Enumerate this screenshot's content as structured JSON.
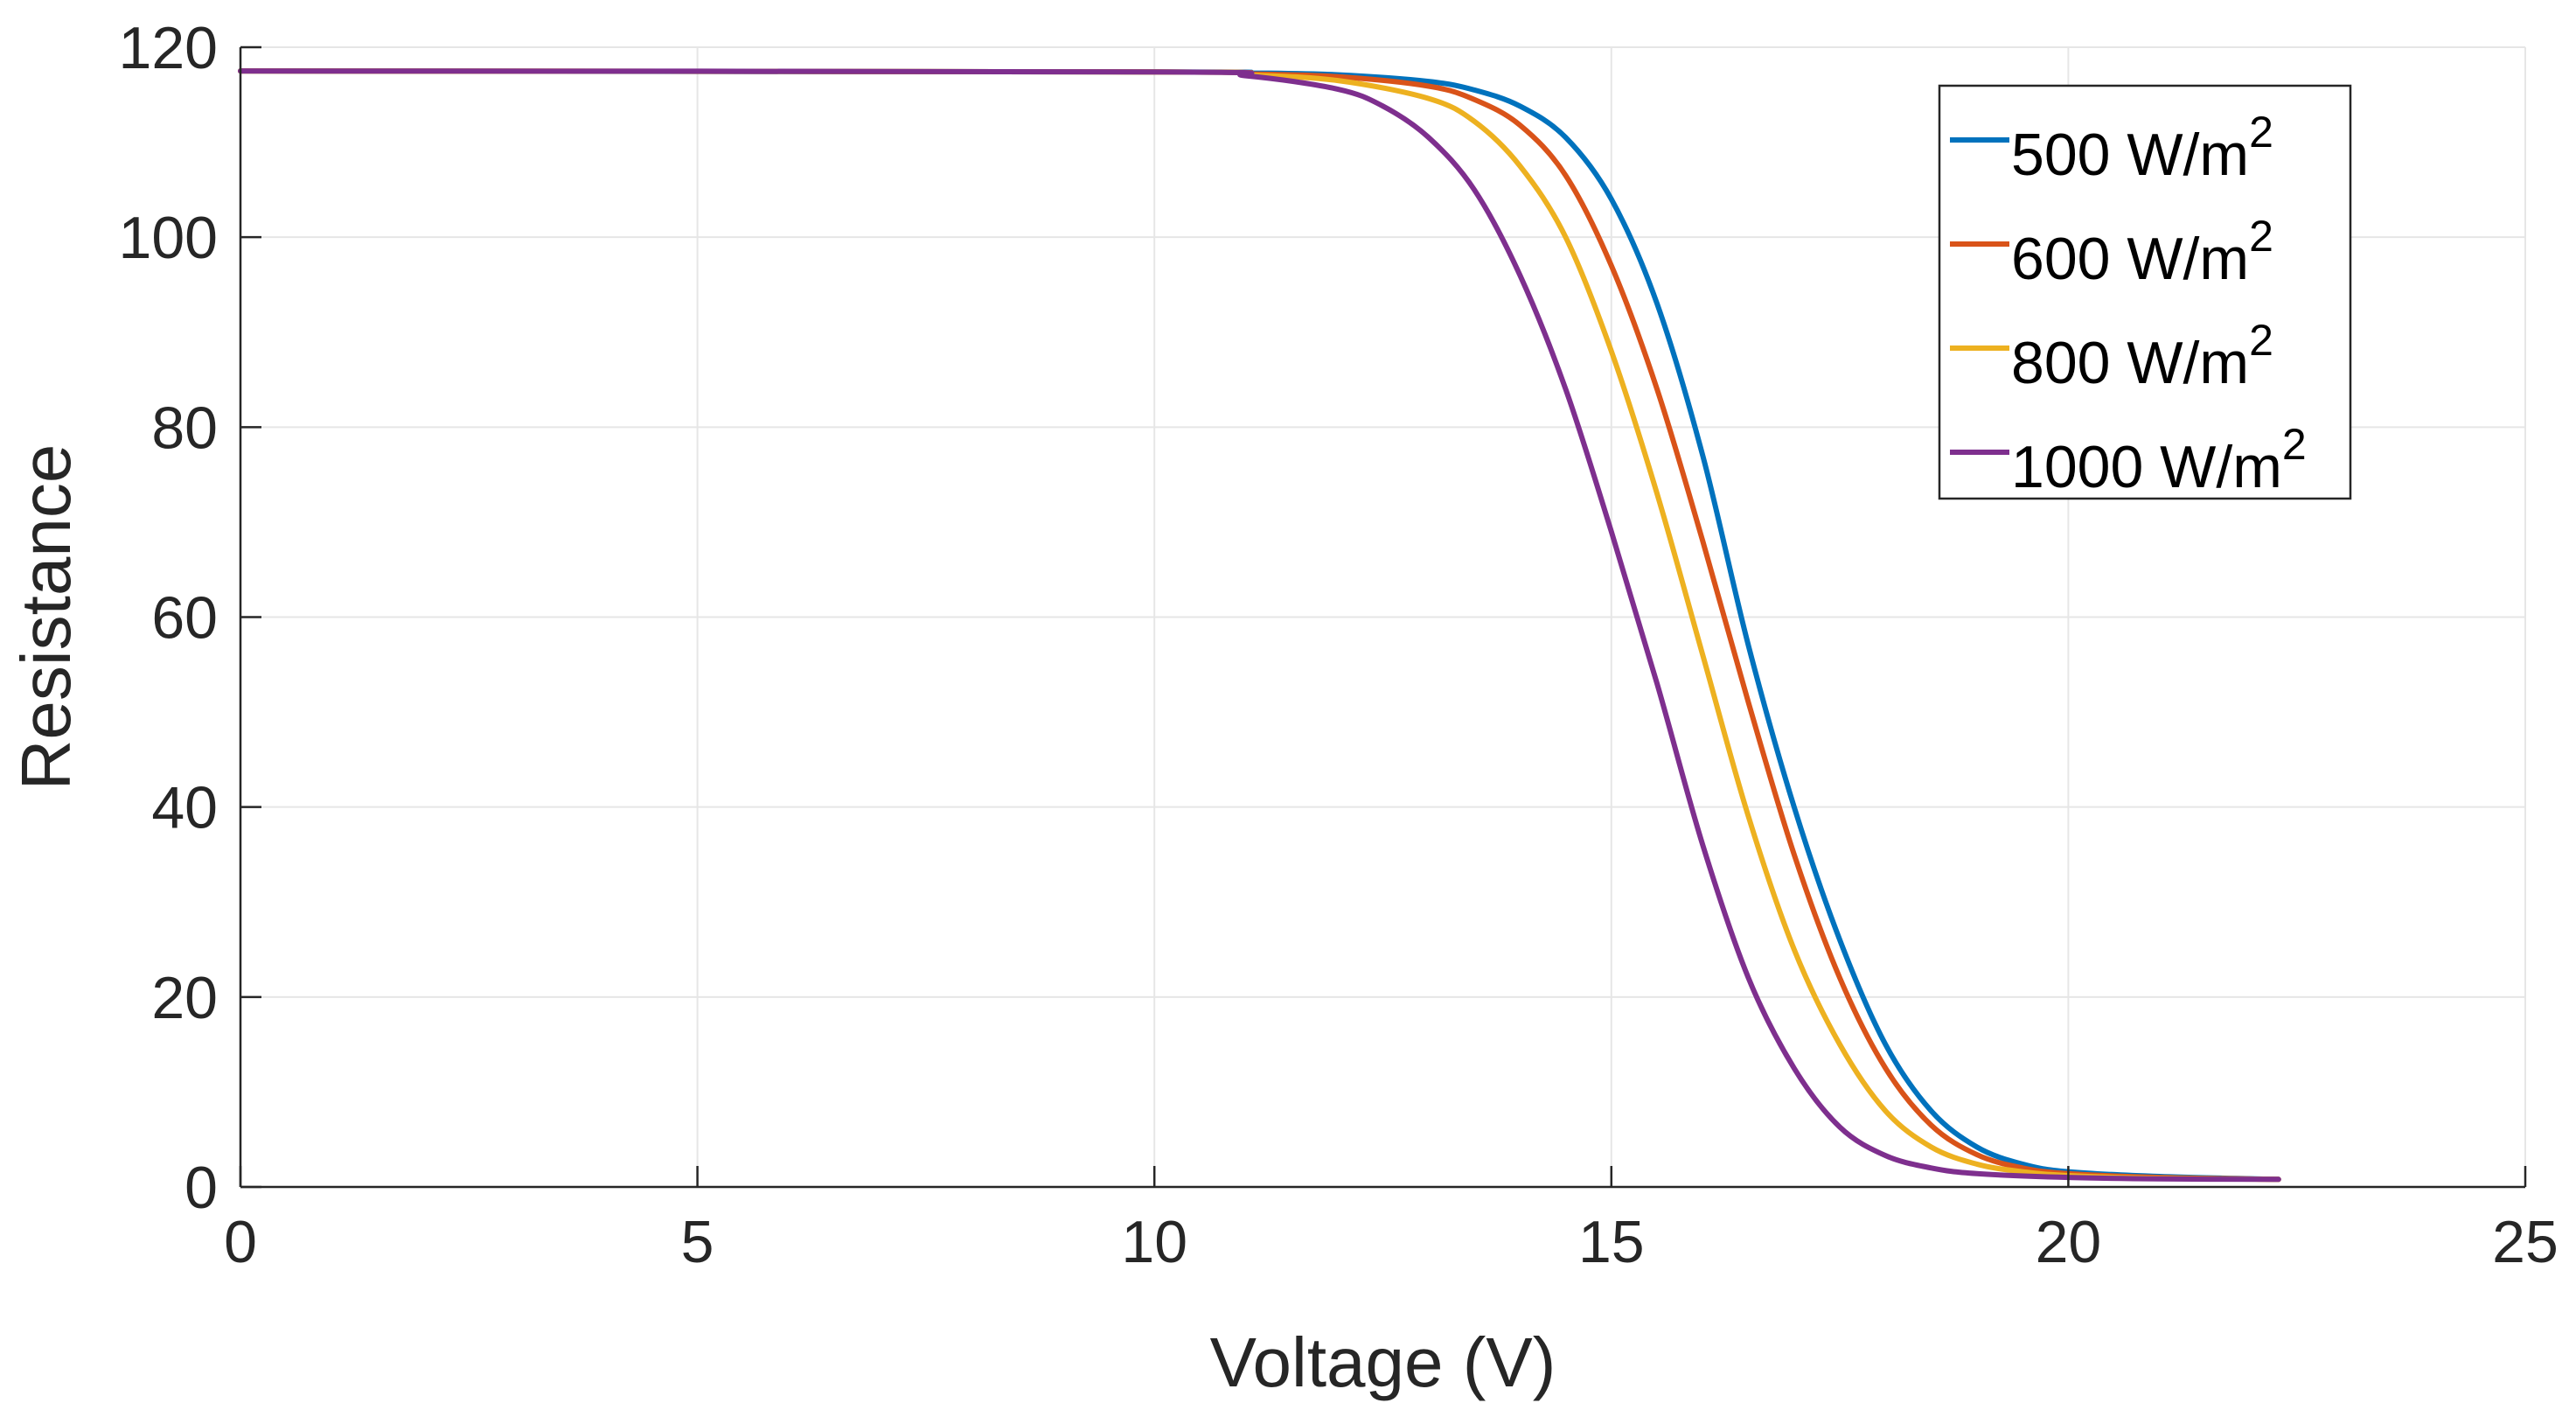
{
  "chart_data": {
    "type": "line",
    "title": "",
    "xlabel": "Voltage (V)",
    "ylabel": "Resistance",
    "xlim": [
      0,
      25
    ],
    "ylim": [
      0,
      120
    ],
    "xticks": [
      0,
      5,
      10,
      15,
      20,
      25
    ],
    "yticks": [
      0,
      20,
      40,
      60,
      80,
      100,
      120
    ],
    "xtick_labels": [
      "0",
      "5",
      "10",
      "15",
      "20",
      "25"
    ],
    "ytick_labels": [
      "0",
      "20",
      "40",
      "60",
      "80",
      "100",
      "120"
    ],
    "grid": true,
    "legend_position": "top-right",
    "series": [
      {
        "name": "500 W/m",
        "name_superscript": "2",
        "color": "#0072BD",
        "x": [
          0,
          10,
          11,
          12,
          13,
          13.5,
          14,
          14.5,
          15,
          15.5,
          16,
          16.5,
          17,
          17.5,
          18,
          18.5,
          19,
          19.5,
          20,
          21,
          22.3
        ],
        "y": [
          117.5,
          117.4,
          117.3,
          117.1,
          116.4,
          115.5,
          113.8,
          110.5,
          104,
          93,
          77,
          57,
          40,
          26,
          15,
          8,
          4.2,
          2.4,
          1.6,
          1.1,
          0.8
        ]
      },
      {
        "name": "600 W/m",
        "name_superscript": "2",
        "color": "#D95319",
        "x": [
          0,
          10,
          11,
          12,
          13,
          13.5,
          14,
          14.5,
          15,
          15.5,
          16,
          16.5,
          17,
          17.5,
          18,
          18.5,
          19,
          19.5,
          20,
          21,
          22.3
        ],
        "y": [
          117.5,
          117.4,
          117.2,
          116.9,
          115.9,
          114.5,
          111.8,
          106.5,
          97,
          84,
          68,
          51,
          35,
          22,
          12.5,
          6.5,
          3.4,
          2,
          1.4,
          1,
          0.8
        ]
      },
      {
        "name": "800 W/m",
        "name_superscript": "2",
        "color": "#EDB120",
        "x": [
          0,
          10,
          11,
          12,
          13,
          13.5,
          14,
          14.5,
          15,
          15.5,
          16,
          16.5,
          17,
          17.5,
          18,
          18.5,
          19,
          19.5,
          20,
          21,
          22.3
        ],
        "y": [
          117.5,
          117.4,
          117.1,
          116.5,
          114.6,
          112.2,
          107.5,
          100,
          88,
          73,
          56,
          39,
          25,
          15,
          8,
          4.2,
          2.4,
          1.6,
          1.2,
          0.9,
          0.8
        ]
      },
      {
        "name": "1000 W/m",
        "name_superscript": "2",
        "color": "#7E2F8E",
        "x": [
          0,
          10,
          11,
          12,
          12.5,
          13,
          13.5,
          14,
          14.5,
          15,
          15.5,
          16,
          16.5,
          17,
          17.5,
          18,
          18.5,
          19,
          20,
          21,
          22.3
        ],
        "y": [
          117.5,
          117.4,
          117,
          115.6,
          113.8,
          110.5,
          105,
          96,
          84,
          69,
          53,
          36,
          22,
          12.5,
          6.3,
          3.3,
          2,
          1.4,
          1,
          0.85,
          0.8
        ]
      }
    ]
  }
}
